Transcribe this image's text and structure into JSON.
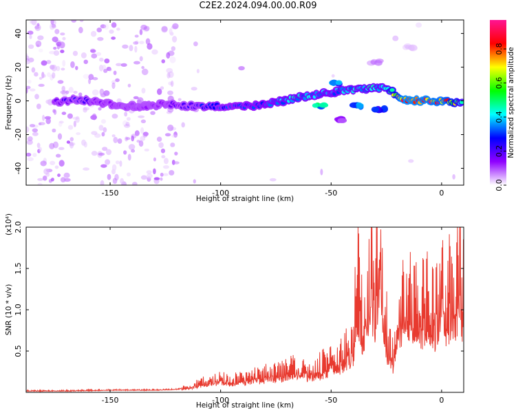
{
  "title": "C2E2.2024.094.00.00.R09",
  "chart_data": [
    {
      "type": "heatmap",
      "xlabel": "Height of straight line (km)",
      "ylabel": "Frequency (Hz)",
      "xlim": [
        -188,
        10
      ],
      "ylim": [
        -50,
        48
      ],
      "x_ticks": [
        -150,
        -100,
        -50,
        0
      ],
      "x_tick_labels": [
        "-150",
        "-100",
        "-50",
        "0"
      ],
      "y_ticks": [
        -40,
        -20,
        0,
        20,
        40
      ],
      "y_tick_labels": [
        "-40",
        "-20",
        "0",
        "20",
        "40"
      ],
      "colorbar": {
        "label": "Normalized spectral amplitude",
        "range": [
          0,
          0.97
        ],
        "ticks": [
          0.0,
          0.2,
          0.4,
          0.6,
          0.8
        ],
        "tick_labels": [
          "0.0",
          "0.2",
          "0.4",
          "0.6",
          "0.8"
        ],
        "colormap": [
          "#ffffff",
          "#8f00ff",
          "#0000ff",
          "#00ffff",
          "#00ff00",
          "#ffff00",
          "#ff0000",
          "#ff1493"
        ]
      },
      "ridge": [
        {
          "x": -175,
          "y": -1,
          "v": 0.15
        },
        {
          "x": -165,
          "y": 1,
          "v": 0.25
        },
        {
          "x": -155,
          "y": -1,
          "v": 0.15
        },
        {
          "x": -145,
          "y": -3,
          "v": 0.12
        },
        {
          "x": -135,
          "y": -3,
          "v": 0.12
        },
        {
          "x": -125,
          "y": -2,
          "v": 0.14
        },
        {
          "x": -115,
          "y": -3,
          "v": 0.24
        },
        {
          "x": -105,
          "y": -3,
          "v": 0.3
        },
        {
          "x": -95,
          "y": -3,
          "v": 0.32
        },
        {
          "x": -85,
          "y": -3,
          "v": 0.34
        },
        {
          "x": -75,
          "y": -1,
          "v": 0.38
        },
        {
          "x": -65,
          "y": 2,
          "v": 0.44
        },
        {
          "x": -55,
          "y": 4,
          "v": 0.4
        },
        {
          "x": -45,
          "y": 6,
          "v": 0.4
        },
        {
          "x": -35,
          "y": 7,
          "v": 0.45
        },
        {
          "x": -25,
          "y": 8,
          "v": 0.45
        },
        {
          "x": -18,
          "y": 1,
          "v": 0.9
        },
        {
          "x": -8,
          "y": 0,
          "v": 0.9
        },
        {
          "x": 2,
          "y": 0,
          "v": 0.85
        },
        {
          "x": 10,
          "y": -2,
          "v": 0.5
        }
      ],
      "branches": [
        {
          "x": -55,
          "y": -3,
          "v": 0.5
        },
        {
          "x": -45,
          "y": -11,
          "v": 0.15
        },
        {
          "x": -38,
          "y": -3,
          "v": 0.4
        },
        {
          "x": -28,
          "y": -5,
          "v": 0.3
        },
        {
          "x": -48,
          "y": 10,
          "v": 0.4
        },
        {
          "x": -30,
          "y": 23,
          "v": 0.1
        },
        {
          "x": -15,
          "y": 32,
          "v": 0.05
        }
      ]
    },
    {
      "type": "line",
      "xlabel": "Height of straight line (km)",
      "ylabel": "SNR (10 * v/v)",
      "y_scale_label": "(x10⁴)",
      "xlim": [
        -188,
        10
      ],
      "ylim": [
        0,
        2.0
      ],
      "x_ticks": [
        -150,
        -100,
        -50,
        0
      ],
      "x_tick_labels": [
        "-150",
        "-100",
        "-50",
        "0"
      ],
      "y_ticks": [
        0.5,
        1.0,
        1.5,
        2.0
      ],
      "y_tick_labels": [
        "0.5",
        "1.0",
        "1.5",
        "2.0"
      ],
      "line_color": "#e83a2f",
      "series": [
        {
          "x": [
            -188,
            -170,
            -150,
            -130,
            -120,
            -115,
            -110,
            -105,
            -100,
            -95,
            -90,
            -85,
            -80,
            -75,
            -70,
            -65,
            -60,
            -55,
            -50,
            -45,
            -40,
            -38,
            -36,
            -34,
            -32,
            -30,
            -28,
            -27,
            -26,
            -24,
            -22,
            -20,
            -18,
            -15,
            -12,
            -10,
            -8,
            -5,
            -3,
            -1,
            0,
            2,
            4,
            6,
            8,
            10
          ],
          "y": [
            0.02,
            0.02,
            0.03,
            0.03,
            0.04,
            0.06,
            0.12,
            0.15,
            0.18,
            0.15,
            0.17,
            0.2,
            0.22,
            0.25,
            0.28,
            0.3,
            0.28,
            0.32,
            0.4,
            0.45,
            0.7,
            1.5,
            0.9,
            1.1,
            1.6,
            1.2,
            2.0,
            1.4,
            1.1,
            0.6,
            0.5,
            1.0,
            1.15,
            1.25,
            1.05,
            0.95,
            1.1,
            1.1,
            1.05,
            1.4,
            1.6,
            1.0,
            1.35,
            1.3,
            1.55,
            1.2
          ]
        }
      ]
    }
  ]
}
